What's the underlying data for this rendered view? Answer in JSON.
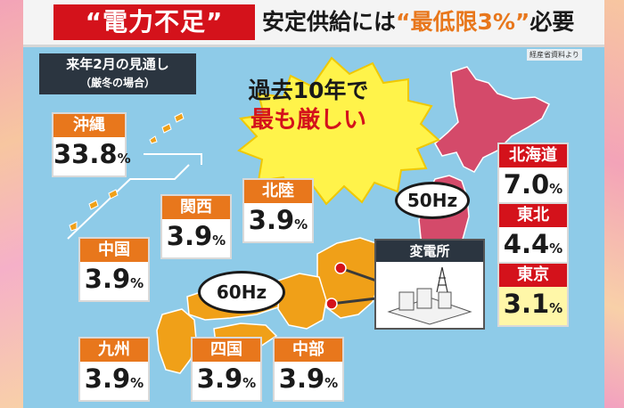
{
  "title": {
    "highlight": "“電力不足”",
    "rest_before": "安定供給には",
    "rest_highlight": "“最低限3%”",
    "rest_after": "必要"
  },
  "source": "経産省資料より",
  "forecast": {
    "line1": "来年2月の見通し",
    "line2": "（厳冬の場合）"
  },
  "callout": {
    "line1": "過去10年で",
    "line2": "最も厳しい"
  },
  "frequency": {
    "east": "50Hz",
    "west": "60Hz"
  },
  "substation": {
    "label": "変電所"
  },
  "regions": {
    "okinawa": {
      "name": "沖縄",
      "value": "33.8",
      "unit": "%"
    },
    "hokkaido": {
      "name": "北海道",
      "value": "7.0",
      "unit": "%"
    },
    "tohoku": {
      "name": "東北",
      "value": "4.4",
      "unit": "%"
    },
    "tokyo": {
      "name": "東京",
      "value": "3.1",
      "unit": "%"
    },
    "hokuriku": {
      "name": "北陸",
      "value": "3.9",
      "unit": "%"
    },
    "kansai": {
      "name": "関西",
      "value": "3.9",
      "unit": "%"
    },
    "chugoku": {
      "name": "中国",
      "value": "3.9",
      "unit": "%"
    },
    "kyushu": {
      "name": "九州",
      "value": "3.9",
      "unit": "%"
    },
    "shikoku": {
      "name": "四国",
      "value": "3.9",
      "unit": "%"
    },
    "chubu": {
      "name": "中部",
      "value": "3.9",
      "unit": "%"
    }
  },
  "colors": {
    "east_grid": "#d4121b",
    "west_grid": "#e8771c",
    "sea": "#8ecbe8",
    "east_land": "#d44a6a",
    "west_land": "#f0a018",
    "tokyo_highlight": "#fff7a8"
  }
}
